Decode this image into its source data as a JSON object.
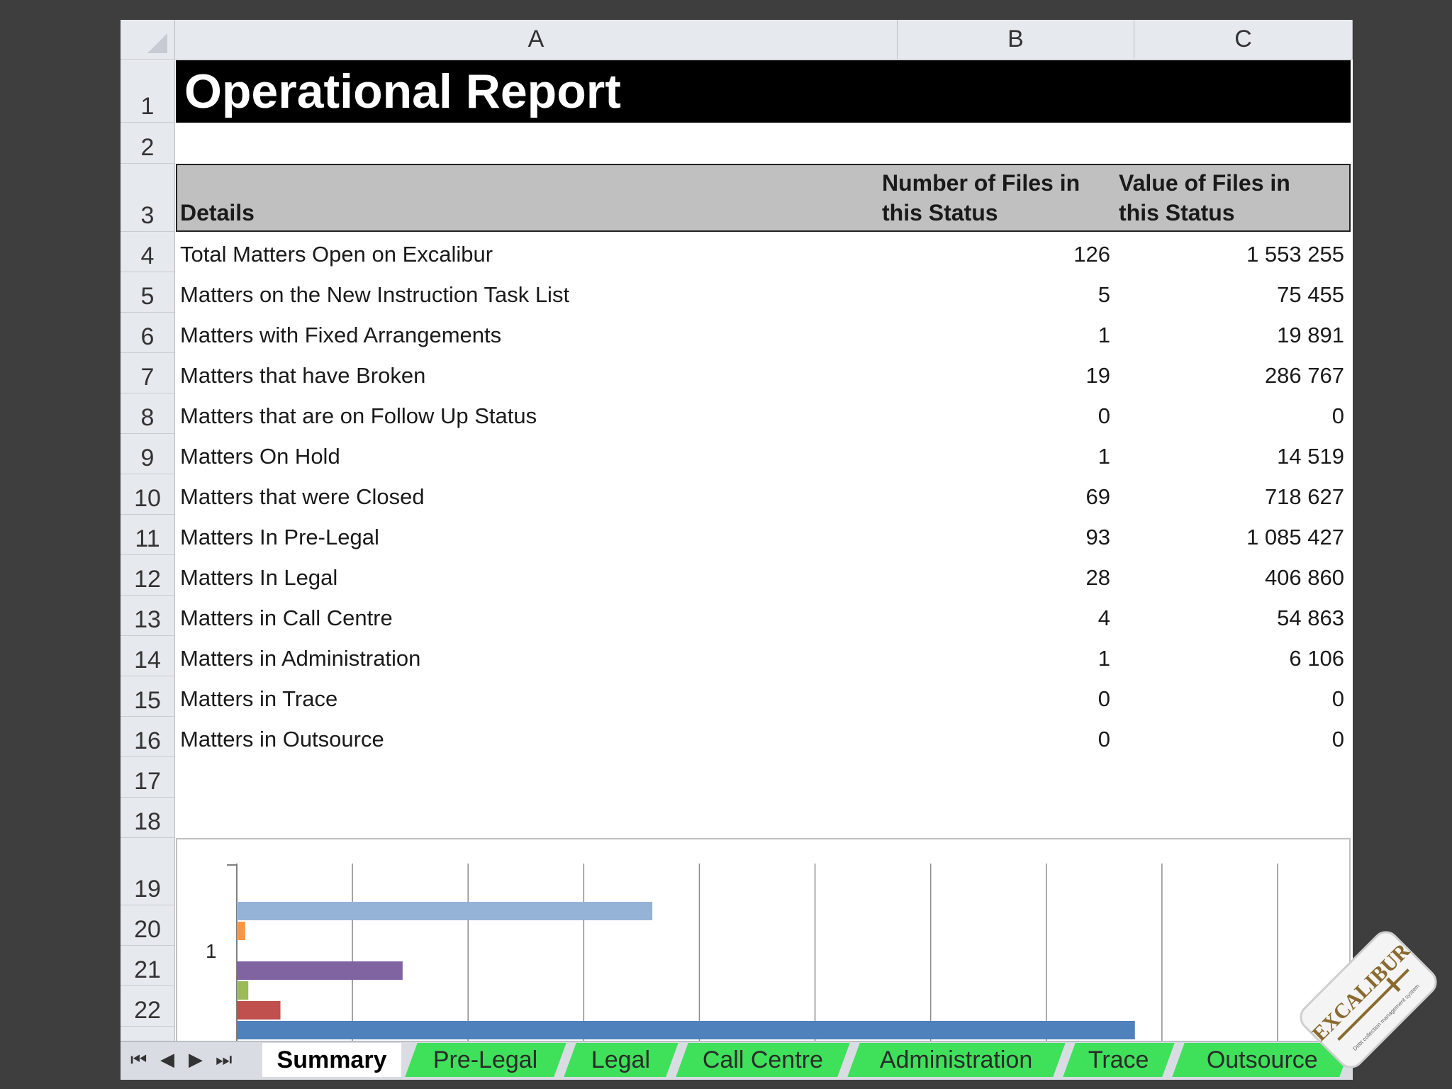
{
  "columns": [
    "A",
    "B",
    "C"
  ],
  "rows": [
    "1",
    "2",
    "3",
    "4",
    "5",
    "6",
    "7",
    "8",
    "9",
    "10",
    "11",
    "12",
    "13",
    "14",
    "15",
    "16",
    "17",
    "18",
    "19",
    "20",
    "21",
    "22"
  ],
  "title": "Operational Report",
  "headers": {
    "details": "Details",
    "files_line1": "Number of Files in",
    "files_line2": "this Status",
    "value_line1": "Value of Files in",
    "value_line2": "this Status"
  },
  "table": [
    {
      "label": "Total Matters Open on Excalibur",
      "files": "126",
      "value": "1 553 255"
    },
    {
      "label": "Matters on the New Instruction Task List",
      "files": "5",
      "value": "75 455"
    },
    {
      "label": "Matters with Fixed Arrangements",
      "files": "1",
      "value": "19 891"
    },
    {
      "label": "Matters that have Broken",
      "files": "19",
      "value": "286 767"
    },
    {
      "label": "Matters that are on Follow Up Status",
      "files": "0",
      "value": "0"
    },
    {
      "label": "Matters On Hold",
      "files": "1",
      "value": "14 519"
    },
    {
      "label": "Matters that were Closed",
      "files": "69",
      "value": "718 627"
    },
    {
      "label": "Matters In Pre-Legal",
      "files": "93",
      "value": "1 085 427"
    },
    {
      "label": "Matters In Legal",
      "files": "28",
      "value": "406 860"
    },
    {
      "label": "Matters in Call Centre",
      "files": "4",
      "value": "54 863"
    },
    {
      "label": "Matters in Administration",
      "files": "1",
      "value": "6 106"
    },
    {
      "label": "Matters in Trace",
      "files": "0",
      "value": "0"
    },
    {
      "label": "Matters in Outsource",
      "files": "0",
      "value": "0"
    }
  ],
  "chart_data": {
    "type": "bar",
    "orientation": "horizontal",
    "categories": [
      "1"
    ],
    "series": [
      {
        "values": [
          1553255
        ],
        "color": "#4f81bd"
      },
      {
        "values": [
          75455
        ],
        "color": "#c0504d"
      },
      {
        "values": [
          19891
        ],
        "color": "#9bbb59"
      },
      {
        "values": [
          286767
        ],
        "color": "#8064a2"
      },
      {
        "values": [
          0
        ],
        "color": "#4bacc6"
      },
      {
        "values": [
          14519
        ],
        "color": "#f79646"
      },
      {
        "values": [
          718627
        ],
        "color": "#95b3d7"
      }
    ],
    "xlim": [
      0,
      1800000
    ],
    "grid": true
  },
  "tabs": [
    "Summary",
    "Pre-Legal",
    "Legal",
    "Call Centre",
    "Administration",
    "Trace",
    "Outsource"
  ],
  "nav_icons": [
    "first-sheet-icon",
    "prev-sheet-icon",
    "next-sheet-icon",
    "last-sheet-icon"
  ],
  "logo": {
    "text": "EXCALIBUR",
    "tagline": "Debt collection management system"
  },
  "colors": {
    "background": "#3e3e3e",
    "title_bar": "#000000",
    "header_band": "#c0c0c0",
    "tab_green": "#3fe05a"
  }
}
